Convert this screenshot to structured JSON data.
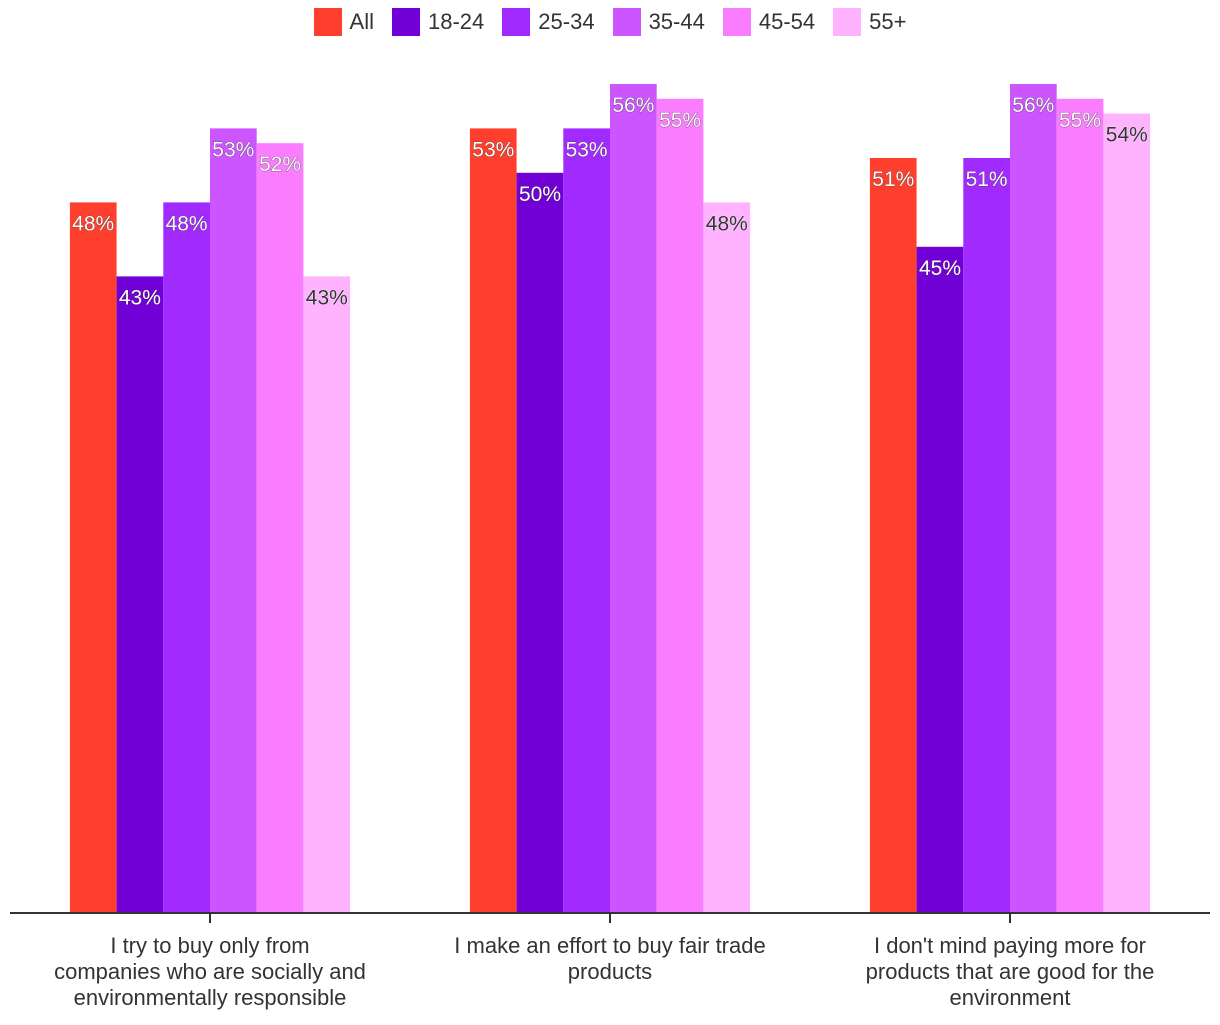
{
  "chart_data": {
    "type": "bar",
    "title": "",
    "xlabel": "",
    "ylabel": "",
    "ylim": [
      0,
      56
    ],
    "grid": false,
    "legend_position": "top-center",
    "categories": [
      "I try to buy only from companies who are socially and environmentally responsible",
      "I make an effort to buy fair trade products",
      "I don't mind paying more for products that are good for the environment"
    ],
    "category_lines": [
      [
        "I try to buy only from",
        "companies who are socially and",
        "environmentally responsible"
      ],
      [
        "I make an effort to buy fair trade",
        "products"
      ],
      [
        "I don't mind paying more for",
        "products that are good for the",
        "environment"
      ]
    ],
    "series": [
      {
        "name": "All",
        "color": "#ff3f2e",
        "values": [
          48,
          53,
          51
        ]
      },
      {
        "name": "18-24",
        "color": "#7000d6",
        "values": [
          43,
          50,
          45
        ]
      },
      {
        "name": "25-34",
        "color": "#a12bff",
        "values": [
          48,
          53,
          51
        ]
      },
      {
        "name": "35-44",
        "color": "#cc55ff",
        "values": [
          53,
          56,
          56
        ]
      },
      {
        "name": "45-54",
        "color": "#fb7dff",
        "values": [
          52,
          55,
          55
        ]
      },
      {
        "name": "55+",
        "color": "#ffb3ff",
        "values": [
          43,
          48,
          54
        ]
      }
    ],
    "value_suffix": "%"
  }
}
